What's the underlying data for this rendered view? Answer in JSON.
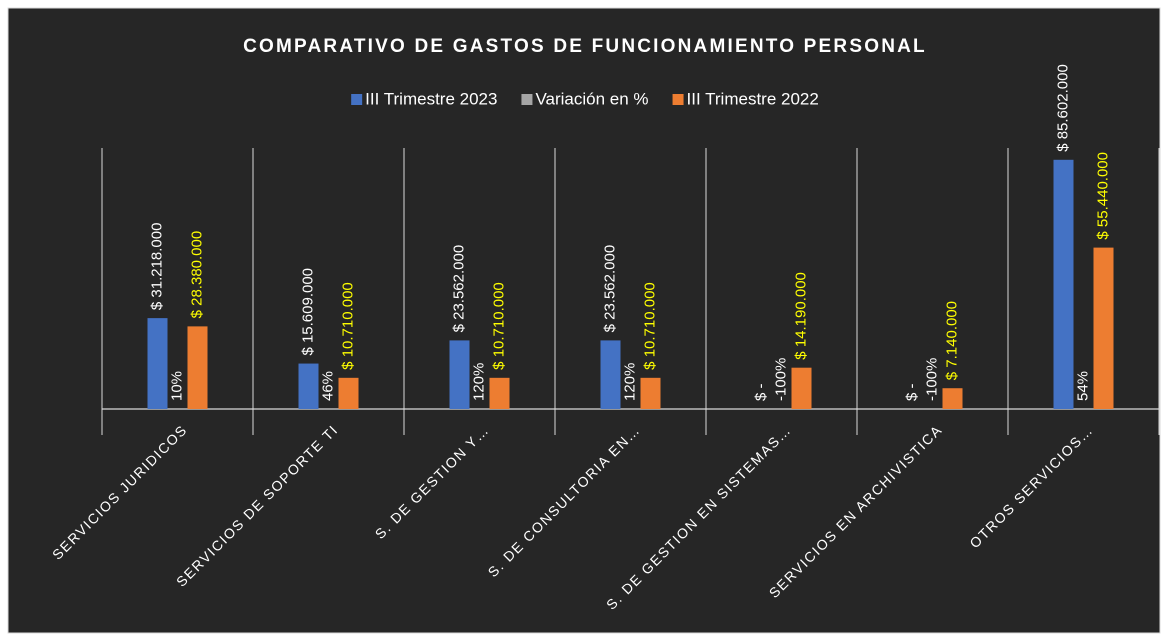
{
  "chart_data": {
    "type": "bar",
    "title": "COMPARATIVO DE GASTOS DE FUNCIONAMIENTO PERSONAL",
    "categories": [
      "SERVICIOS JURIDICOS",
      "SERVICIOS DE SOPORTE TI",
      "S. DE GESTION Y…",
      "S. DE CONSULTORIA EN…",
      "S. DE GESTION EN SISTEMAS…",
      "SERVICIOS EN ARCHIVISTICA",
      "OTROS SERVICIOS…"
    ],
    "series": [
      {
        "name": "III Trimestre 2023",
        "color": "#4472c4",
        "values": [
          31218000,
          15609000,
          23562000,
          23562000,
          0,
          0,
          85602000
        ],
        "value_labels": [
          "$ 31.218.000",
          "$ 15.609.000",
          "$ 23.562.000",
          "$ 23.562.000",
          "$ -",
          "$ -",
          "$ 85.602.000"
        ]
      },
      {
        "name": "Variación en %",
        "color": "#a5a5a5",
        "values": [
          10,
          46,
          120,
          120,
          -100,
          -100,
          54
        ],
        "value_labels": [
          "10%",
          "46%",
          "120%",
          "120%",
          "-100%",
          "-100%",
          "54%"
        ]
      },
      {
        "name": "III Trimestre 2022",
        "color": "#ed7d31",
        "values": [
          28380000,
          10710000,
          10710000,
          10710000,
          14190000,
          7140000,
          55440000
        ],
        "value_labels": [
          "$ 28.380.000",
          "$ 10.710.000",
          "$ 10.710.000",
          "$ 10.710.000",
          "$ 14.190.000",
          "$ 7.140.000",
          "$ 55.440.000"
        ]
      }
    ],
    "label_colors": [
      "#ffffff",
      "#ffffff",
      "#ffff00"
    ],
    "ylim": [
      0,
      90000000
    ],
    "legend": "top"
  }
}
